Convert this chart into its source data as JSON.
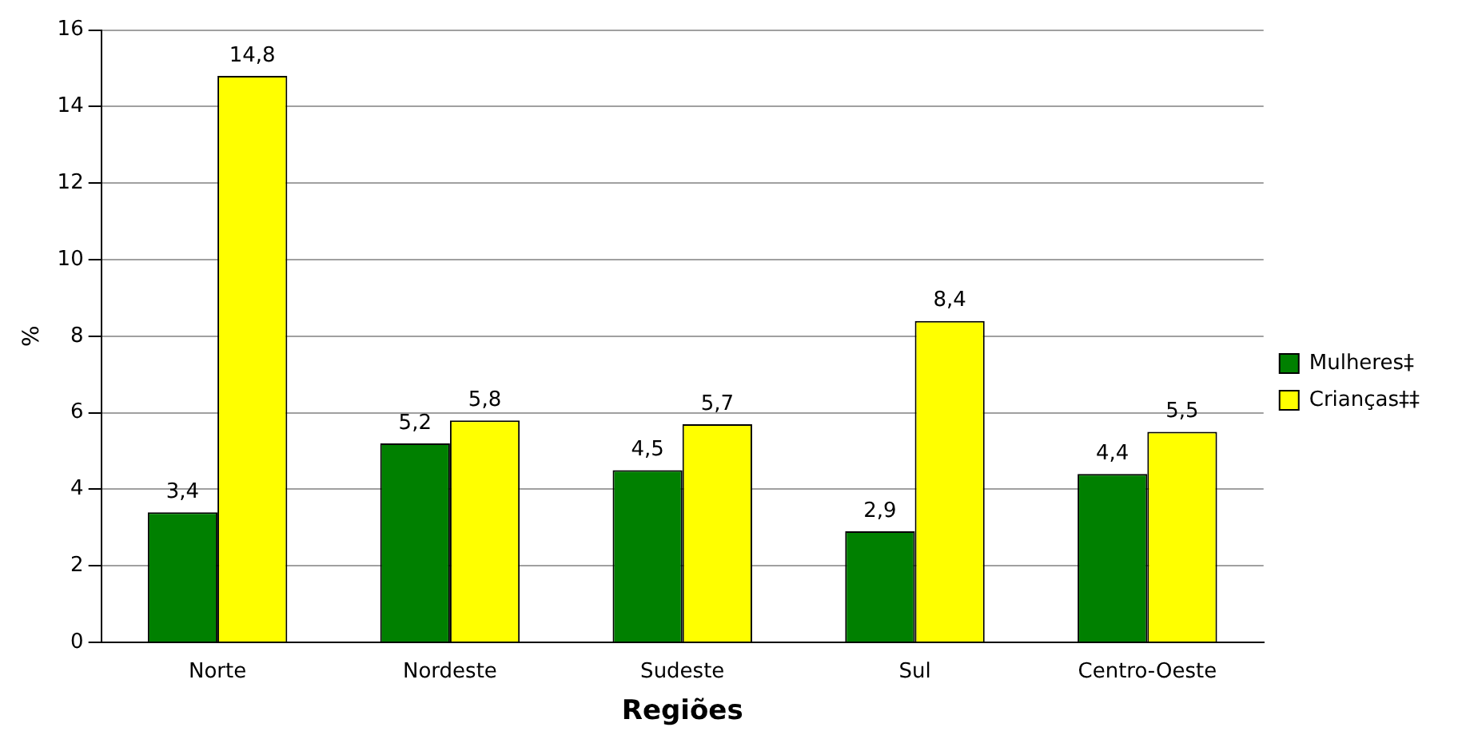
{
  "chart_data": {
    "type": "bar",
    "xlabel": "Regiões",
    "ylabel": "%",
    "categories": [
      "Norte",
      "Nordeste",
      "Sudeste",
      "Sul",
      "Centro-Oeste"
    ],
    "series": [
      {
        "name": "Mulheres‡",
        "color": "#008000",
        "values": [
          3.4,
          5.2,
          4.5,
          2.9,
          4.4
        ],
        "value_labels": [
          "3,4",
          "5,2",
          "4,5",
          "2,9",
          "4,4"
        ]
      },
      {
        "name": "Crianças‡‡",
        "color": "#ffff00",
        "values": [
          14.8,
          5.8,
          5.7,
          8.4,
          5.5
        ],
        "value_labels": [
          "14,8",
          "5,8",
          "5,7",
          "8,4",
          "5,5"
        ]
      }
    ],
    "ylim": [
      0,
      16
    ],
    "yticks": [
      0,
      2,
      4,
      6,
      8,
      10,
      12,
      14,
      16
    ],
    "grid": "y",
    "legend": "right"
  }
}
